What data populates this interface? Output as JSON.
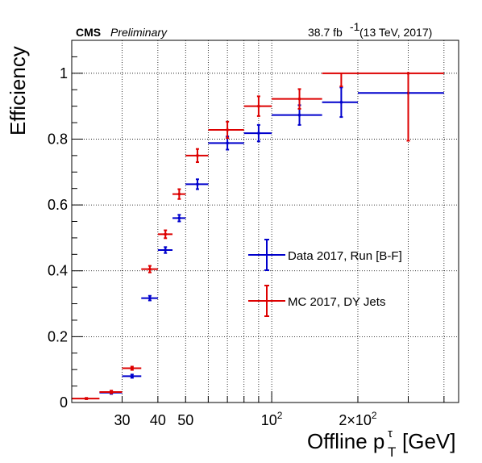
{
  "chart_data": {
    "type": "scatter",
    "header_left_bold": "CMS",
    "header_left_italic": "Preliminary",
    "header_right_lumi": "38.7 fb",
    "header_right_exp": "-1",
    "header_right_energy": "(13 TeV, 2017)",
    "ylabel": "Efficiency",
    "xlabel_main": "Offline p",
    "xlabel_sub": "T",
    "xlabel_sup": "τ",
    "xlabel_unit": "[GeV]",
    "x_scale": "log",
    "xlim": [
      20,
      450
    ],
    "ylim": [
      0,
      1.1
    ],
    "grid": true,
    "legend_position": "center-right",
    "y_ticks": [
      {
        "value": 0,
        "label": "0"
      },
      {
        "value": 0.2,
        "label": "0.2"
      },
      {
        "value": 0.4,
        "label": "0.4"
      },
      {
        "value": 0.6,
        "label": "0.6"
      },
      {
        "value": 0.8,
        "label": "0.8"
      },
      {
        "value": 1.0,
        "label": "1"
      }
    ],
    "x_tick_labels": [
      {
        "value": 30,
        "label": "30"
      },
      {
        "value": 40,
        "label": "40"
      },
      {
        "value": 50,
        "label": "50"
      },
      {
        "value": 100,
        "base": "10",
        "exp": "2"
      },
      {
        "value": 200,
        "base": "2×10",
        "exp": "2"
      }
    ],
    "x_major_ticks": [
      100
    ],
    "x_minor_ticks": [
      20,
      30,
      40,
      50,
      60,
      70,
      80,
      90,
      200,
      300,
      400
    ],
    "series": [
      {
        "name": "Data 2017, Run [B-F]",
        "color": "#0000cc",
        "points": [
          {
            "x": 27.5,
            "xlo": 25,
            "xhi": 30,
            "y": 0.03,
            "ey": 0.004
          },
          {
            "x": 32.5,
            "xlo": 30,
            "xhi": 35,
            "y": 0.08,
            "ey": 0.005
          },
          {
            "x": 37.5,
            "xlo": 35,
            "xhi": 40,
            "y": 0.317,
            "ey": 0.007
          },
          {
            "x": 42.5,
            "xlo": 40,
            "xhi": 45,
            "y": 0.463,
            "ey": 0.009
          },
          {
            "x": 47.5,
            "xlo": 45,
            "xhi": 50,
            "y": 0.56,
            "ey": 0.01
          },
          {
            "x": 55,
            "xlo": 50,
            "xhi": 60,
            "y": 0.663,
            "ey": 0.015
          },
          {
            "x": 70,
            "xlo": 60,
            "xhi": 80,
            "y": 0.788,
            "ey": 0.02
          },
          {
            "x": 90,
            "xlo": 80,
            "xhi": 100,
            "y": 0.818,
            "ey": 0.025
          },
          {
            "x": 125,
            "xlo": 100,
            "xhi": 150,
            "y": 0.873,
            "ey": 0.03
          },
          {
            "x": 175,
            "xlo": 150,
            "xhi": 200,
            "y": 0.912,
            "ey": 0.045
          },
          {
            "x": 300,
            "xlo": 200,
            "xhi": 400,
            "y": 0.94,
            "ey": 0.0
          }
        ]
      },
      {
        "name": "MC 2017, DY Jets",
        "color": "#dd0000",
        "points": [
          {
            "x": 22.5,
            "xlo": 20,
            "xhi": 25,
            "y": 0.012,
            "ey": 0.002
          },
          {
            "x": 27.5,
            "xlo": 25,
            "xhi": 30,
            "y": 0.032,
            "ey": 0.004
          },
          {
            "x": 32.5,
            "xlo": 30,
            "xhi": 35,
            "y": 0.104,
            "ey": 0.005
          },
          {
            "x": 37.5,
            "xlo": 35,
            "xhi": 40,
            "y": 0.405,
            "ey": 0.01
          },
          {
            "x": 42.5,
            "xlo": 40,
            "xhi": 45,
            "y": 0.511,
            "ey": 0.012
          },
          {
            "x": 47.5,
            "xlo": 45,
            "xhi": 50,
            "y": 0.633,
            "ey": 0.015
          },
          {
            "x": 55,
            "xlo": 50,
            "xhi": 60,
            "y": 0.75,
            "ey": 0.02
          },
          {
            "x": 70,
            "xlo": 60,
            "xhi": 80,
            "y": 0.828,
            "ey": 0.025
          },
          {
            "x": 90,
            "xlo": 80,
            "xhi": 100,
            "y": 0.9,
            "ey": 0.03
          },
          {
            "x": 125,
            "xlo": 100,
            "xhi": 150,
            "y": 0.922,
            "ey": 0.03
          },
          {
            "x": 300,
            "xlo": 150,
            "xhi": 400,
            "y": 1.0,
            "ey": 0.0,
            "ey_lo": 0.0,
            "ey_hi": 0.0
          }
        ]
      }
    ],
    "extra_error_bars": [
      {
        "series": 1,
        "x": 175,
        "y": 1.0,
        "ey_lo": 0.04,
        "ey_hi": 0.0
      },
      {
        "series": 1,
        "x": 300,
        "y": 1.0,
        "ey_lo": 0.205,
        "ey_hi": 0.0
      }
    ]
  }
}
